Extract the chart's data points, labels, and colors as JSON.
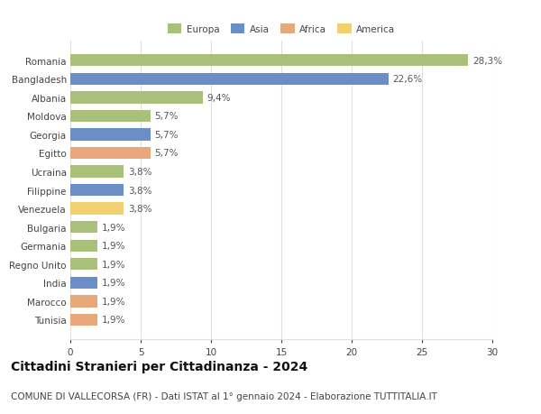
{
  "categories": [
    "Romania",
    "Bangladesh",
    "Albania",
    "Moldova",
    "Georgia",
    "Egitto",
    "Ucraina",
    "Filippine",
    "Venezuela",
    "Bulgaria",
    "Germania",
    "Regno Unito",
    "India",
    "Marocco",
    "Tunisia"
  ],
  "values": [
    28.3,
    22.6,
    9.4,
    5.7,
    5.7,
    5.7,
    3.8,
    3.8,
    3.8,
    1.9,
    1.9,
    1.9,
    1.9,
    1.9,
    1.9
  ],
  "labels": [
    "28,3%",
    "22,6%",
    "9,4%",
    "5,7%",
    "5,7%",
    "5,7%",
    "3,8%",
    "3,8%",
    "3,8%",
    "1,9%",
    "1,9%",
    "1,9%",
    "1,9%",
    "1,9%",
    "1,9%"
  ],
  "bar_colors": [
    "#a8c07a",
    "#6b8ec7",
    "#a8c07a",
    "#a8c07a",
    "#6b8ec7",
    "#e8a87c",
    "#a8c07a",
    "#6b8ec7",
    "#f0d070",
    "#a8c07a",
    "#a8c07a",
    "#a8c07a",
    "#6b8ec7",
    "#e8a87c",
    "#e8a87c"
  ],
  "legend_labels": [
    "Europa",
    "Asia",
    "Africa",
    "America"
  ],
  "legend_colors": [
    "#a8c07a",
    "#6b8ec7",
    "#e8a87c",
    "#f0d070"
  ],
  "title": "Cittadini Stranieri per Cittadinanza - 2024",
  "subtitle": "COMUNE DI VALLECORSA (FR) - Dati ISTAT al 1° gennaio 2024 - Elaborazione TUTTITALIA.IT",
  "xlim": [
    0,
    30
  ],
  "xticks": [
    0,
    5,
    10,
    15,
    20,
    25,
    30
  ],
  "bg_color": "#ffffff",
  "grid_color": "#e0e0e0",
  "title_fontsize": 10,
  "subtitle_fontsize": 7.5,
  "label_fontsize": 7.5,
  "tick_fontsize": 7.5
}
